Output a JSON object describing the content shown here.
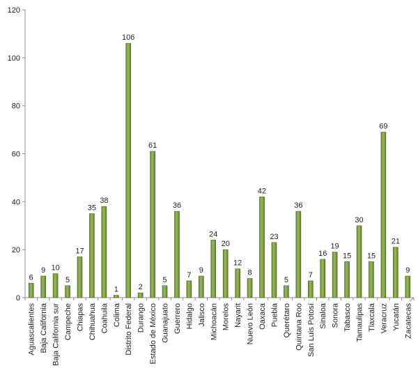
{
  "chart_data": {
    "type": "bar",
    "title": "",
    "xlabel": "",
    "ylabel": "",
    "ylim": [
      0,
      120
    ],
    "yticks": [
      0,
      20,
      40,
      60,
      80,
      100,
      120
    ],
    "grid": false,
    "legend": "none",
    "colors": {
      "bar_fill": "#77933c",
      "bar_highlight": "#9bbb59",
      "bar_edge": "#4f6228",
      "axis": "#8c8c8c"
    },
    "categories": [
      "Aguascalientes",
      "Baja California",
      "Baja California sur",
      "Campeche",
      "Chiapas",
      "Chihuahua",
      "Coahuila",
      "Colima",
      "Distrito Federal",
      "Durango",
      "Estado de México",
      "Guanajuato",
      "Guerrero",
      "Hidalgo",
      "Jalisco",
      "Michoacán",
      "Morelos",
      "Nayarit",
      "Nuevo León",
      "Oaxaca",
      "Puebla",
      "Querétaro",
      "Quintana Roo",
      "San Luis Potosí",
      "Sinaloa",
      "Sonora",
      "Tabasco",
      "Tamaulipas",
      "Tlaxcala",
      "Veracruz",
      "Yucatán",
      "Zacatecas"
    ],
    "values": [
      6,
      9,
      10,
      5,
      17,
      35,
      38,
      1,
      106,
      2,
      61,
      5,
      36,
      7,
      9,
      24,
      20,
      12,
      8,
      42,
      23,
      5,
      36,
      7,
      16,
      19,
      15,
      30,
      15,
      69,
      21,
      9
    ]
  }
}
